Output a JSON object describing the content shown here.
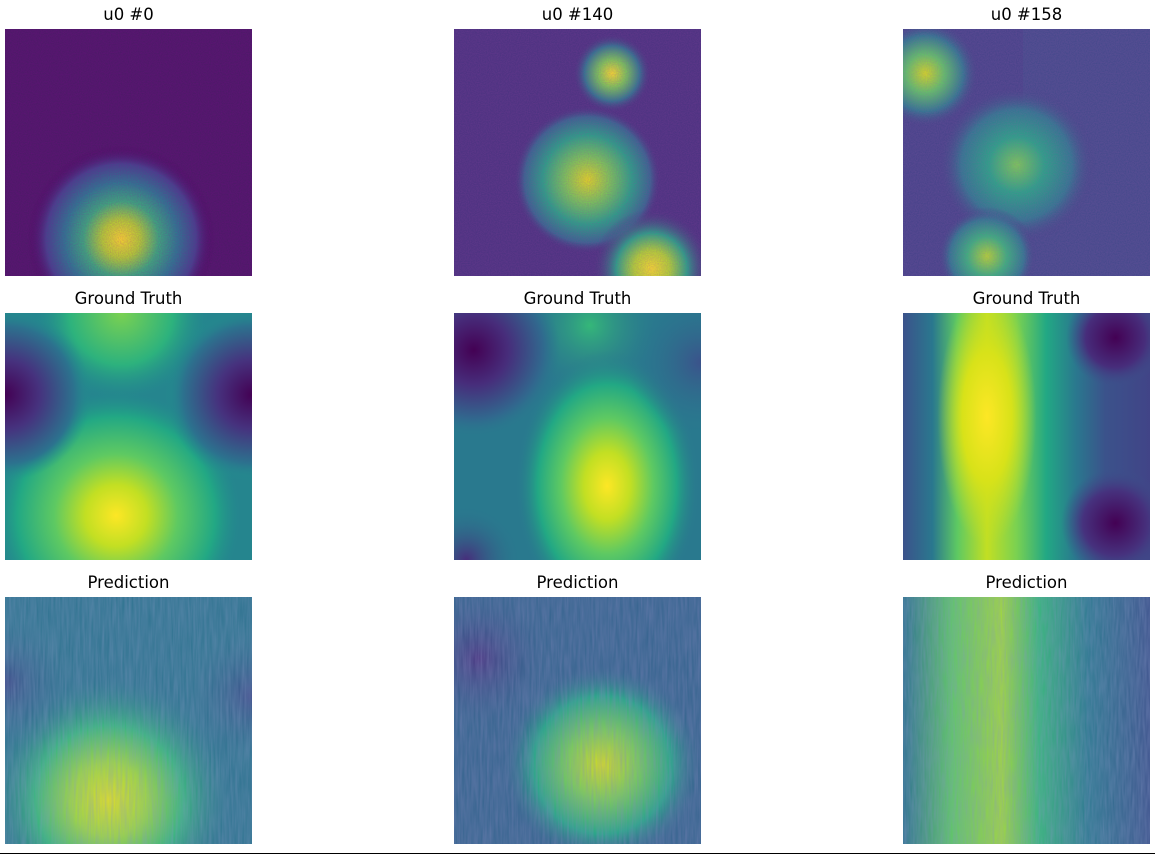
{
  "figure": {
    "rows": [
      {
        "kind": "input",
        "titles": [
          "u0 #0",
          "u0 #140",
          "u0 #158"
        ]
      },
      {
        "kind": "ground_truth",
        "titles": [
          "Ground Truth",
          "Ground Truth",
          "Ground Truth"
        ]
      },
      {
        "kind": "prediction",
        "titles": [
          "Prediction",
          "Prediction",
          "Prediction"
        ]
      }
    ],
    "colormap": "viridis",
    "colormap_endpoints": [
      "#440154",
      "#fde725"
    ]
  },
  "chart_data": [
    {
      "type": "heatmap",
      "title": "u0 #0",
      "description": "noisy single blob, lower middle",
      "blobs": [
        {
          "cx": 0.47,
          "cy": 0.85,
          "sigma": 0.13,
          "amp": 1.0
        }
      ]
    },
    {
      "type": "heatmap",
      "title": "u0 #140",
      "description": "noisy blobs",
      "blobs": [
        {
          "cx": 0.64,
          "cy": 0.18,
          "sigma": 0.06,
          "amp": 0.95
        },
        {
          "cx": 0.54,
          "cy": 0.61,
          "sigma": 0.11,
          "amp": 0.9
        },
        {
          "cx": 0.8,
          "cy": 0.97,
          "sigma": 0.08,
          "amp": 1.0
        }
      ]
    },
    {
      "type": "heatmap",
      "title": "u0 #158",
      "description": "noisy blobs",
      "blobs": [
        {
          "cx": 0.09,
          "cy": 0.18,
          "sigma": 0.08,
          "amp": 0.9
        },
        {
          "cx": 0.46,
          "cy": 0.55,
          "sigma": 0.12,
          "amp": 0.75
        },
        {
          "cx": 0.34,
          "cy": 0.92,
          "sigma": 0.07,
          "amp": 0.8
        }
      ]
    },
    {
      "type": "heatmap",
      "title": "Ground Truth",
      "description": "smooth field, bright lower center"
    },
    {
      "type": "heatmap",
      "title": "Ground Truth",
      "description": "smooth field, bright center-bottom"
    },
    {
      "type": "heatmap",
      "title": "Ground Truth",
      "description": "smooth field, bright vertical band at left-center"
    },
    {
      "type": "heatmap",
      "title": "Prediction",
      "description": "noisy striped approximation of ground truth"
    },
    {
      "type": "heatmap",
      "title": "Prediction",
      "description": "noisy striped approximation of ground truth"
    },
    {
      "type": "heatmap",
      "title": "Prediction",
      "description": "noisy striped approximation of ground truth"
    }
  ]
}
